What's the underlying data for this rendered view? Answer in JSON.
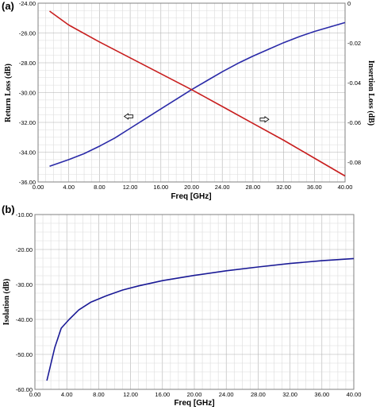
{
  "chart_data": [
    {
      "panel": "(a)",
      "type": "line",
      "xlabel": "Freq [GHz]",
      "ylabel": "Return Loss (dB)",
      "y2label": "Insertion Loss (dB)",
      "xlim": [
        0,
        40
      ],
      "ylim": [
        -36,
        -24
      ],
      "y2lim": [
        -0.09,
        0
      ],
      "x_ticks": [
        "0.00",
        "4.00",
        "8.00",
        "12.00",
        "16.00",
        "20.00",
        "24.00",
        "28.00",
        "32.00",
        "36.00",
        "40.00"
      ],
      "y_ticks": [
        "-24.00",
        "-26.00",
        "-28.00",
        "-30.00",
        "-32.00",
        "-34.00",
        "-36.00"
      ],
      "y2_ticks": [
        "0",
        "-0.02",
        "-0.04",
        "-0.06",
        "-0.08"
      ],
      "grid": true,
      "series": [
        {
          "axis": "left",
          "color": "#2a2aa8",
          "x": [
            1.5,
            4,
            6,
            8,
            10,
            12,
            14,
            16,
            18,
            20,
            22,
            24,
            26,
            28,
            30,
            32,
            34,
            36,
            38,
            40
          ],
          "y": [
            -34.95,
            -34.5,
            -34.1,
            -33.6,
            -33.05,
            -32.4,
            -31.75,
            -31.1,
            -30.45,
            -29.8,
            -29.2,
            -28.6,
            -28.05,
            -27.55,
            -27.1,
            -26.65,
            -26.25,
            -25.9,
            -25.6,
            -25.3
          ]
        },
        {
          "axis": "right",
          "color": "#c81e1e",
          "x": [
            1.5,
            4,
            8,
            12,
            16,
            20,
            24,
            28,
            32,
            36,
            40
          ],
          "y": [
            -0.004,
            -0.011,
            -0.0195,
            -0.0275,
            -0.0355,
            -0.0435,
            -0.052,
            -0.0605,
            -0.069,
            -0.078,
            -0.087
          ]
        }
      ],
      "annotations": [
        {
          "symbol": "left-arrow",
          "x": 11.8,
          "y": -31.6
        },
        {
          "symbol": "right-arrow",
          "x": 29.5,
          "y": -31.8
        }
      ]
    },
    {
      "panel": "(b)",
      "type": "line",
      "xlabel": "Freq [GHz]",
      "ylabel": "Isolation (dB)",
      "xlim": [
        0,
        40
      ],
      "ylim": [
        -60,
        -10
      ],
      "x_ticks": [
        "0.00",
        "4.00",
        "8.00",
        "12.00",
        "16.00",
        "20.00",
        "24.00",
        "28.00",
        "32.00",
        "36.00",
        "40.00"
      ],
      "y_ticks": [
        "-10.00",
        "-20.00",
        "-30.00",
        "-40.00",
        "-50.00",
        "-60.00"
      ],
      "grid": true,
      "series": [
        {
          "axis": "left",
          "color": "#1a1a96",
          "x": [
            1.5,
            2.5,
            3.3,
            4.3,
            5.5,
            7,
            9,
            11,
            13,
            16,
            20,
            24,
            28,
            32,
            36,
            40
          ],
          "y": [
            -57.5,
            -48,
            -42.5,
            -40,
            -37.3,
            -35.1,
            -33.2,
            -31.6,
            -30.4,
            -28.9,
            -27.4,
            -26.1,
            -25.0,
            -24.0,
            -23.2,
            -22.6
          ]
        }
      ]
    }
  ]
}
